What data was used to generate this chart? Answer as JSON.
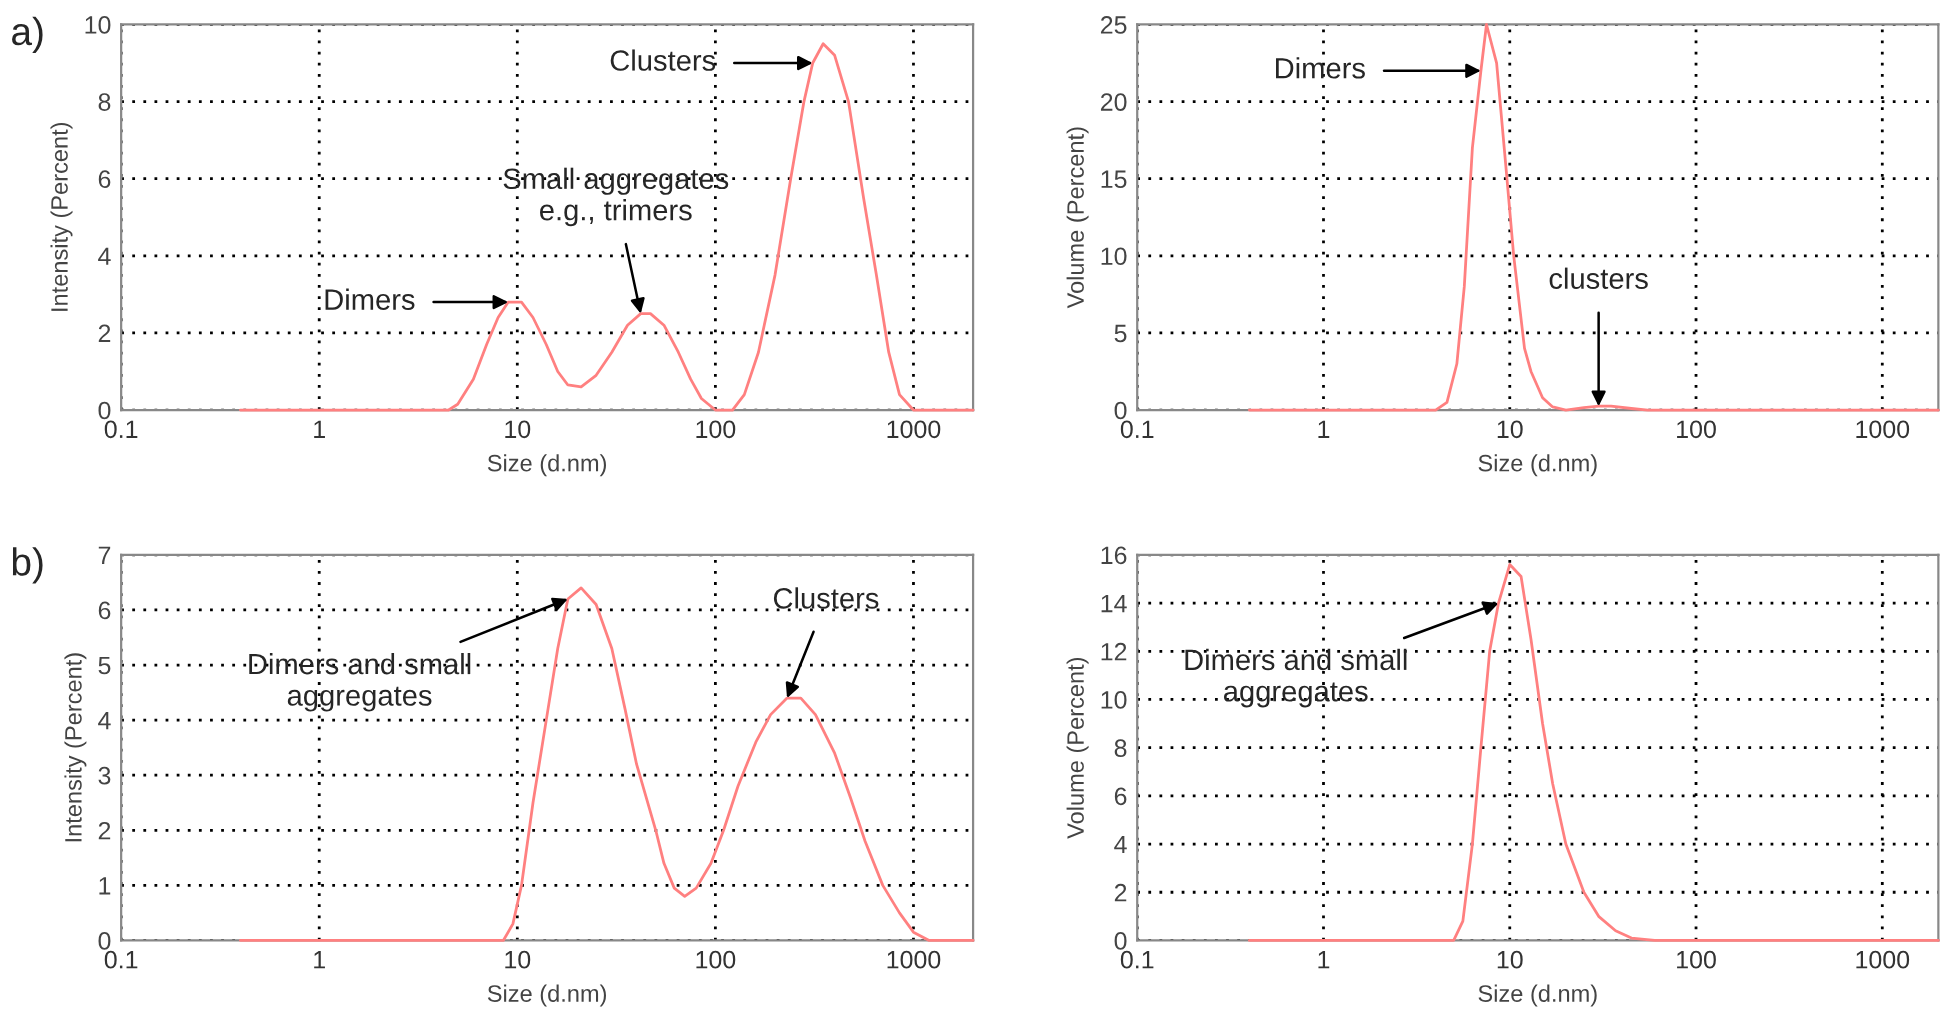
{
  "chart_data": [
    {
      "type": "line",
      "xlabel": "Size (d.nm)",
      "ylabel": "Intensity (Percent)",
      "log": "x",
      "grid": true,
      "marker": "none",
      "line_style": "solid",
      "xlim": [
        0.1,
        2000
      ],
      "xticks": [
        0.1,
        1,
        10,
        100,
        1000
      ],
      "ylim": [
        0,
        10
      ],
      "yticks": [
        0,
        2,
        4,
        6,
        8,
        10
      ],
      "series": [
        {
          "color": "#ff8080",
          "x": [
            0.4,
            4.5,
            5,
            6,
            7,
            8,
            9,
            10.5,
            12,
            14,
            16,
            18,
            21,
            25,
            30,
            36,
            42,
            47,
            55,
            65,
            75,
            85,
            100,
            122,
            140,
            165,
            200,
            240,
            280,
            310,
            350,
            400,
            470,
            560,
            650,
            750,
            850,
            1000,
            2000
          ],
          "values": [
            0,
            0,
            0.15,
            0.8,
            1.7,
            2.4,
            2.8,
            2.8,
            2.4,
            1.7,
            1.0,
            0.65,
            0.6,
            0.9,
            1.5,
            2.2,
            2.5,
            2.5,
            2.2,
            1.5,
            0.8,
            0.3,
            0,
            0,
            0.4,
            1.5,
            3.5,
            6,
            8,
            9,
            9.5,
            9.2,
            8,
            5.5,
            3.5,
            1.5,
            0.4,
            0,
            0
          ]
        }
      ],
      "annotations": [
        "a)",
        {
          "text": "Dimers",
          "x": 9,
          "y": 2.8
        },
        {
          "text": "Small aggregates\ne.g., trimers",
          "x": 42,
          "y": 2.5
        },
        {
          "text": "Clusters",
          "x": 310,
          "y": 9
        }
      ]
    },
    {
      "type": "line",
      "xlabel": "Size (d.nm)",
      "ylabel": "Volume (Percent)",
      "log": "x",
      "grid": true,
      "marker": "none",
      "line_style": "solid",
      "xlim": [
        0.1,
        2000
      ],
      "xticks": [
        0.1,
        1,
        10,
        100,
        1000
      ],
      "ylim": [
        0,
        25
      ],
      "yticks": [
        0,
        5,
        10,
        15,
        20,
        25
      ],
      "series": [
        {
          "color": "#ff8080",
          "x": [
            0.4,
            4,
            4.6,
            5.2,
            5.7,
            6.3,
            7,
            7.5,
            8.5,
            9.5,
            10.5,
            12,
            13,
            15,
            17,
            20,
            25,
            30,
            35,
            45,
            55,
            2000
          ],
          "values": [
            0,
            0,
            0.5,
            3,
            8,
            17,
            22,
            25,
            22.5,
            16,
            10,
            4,
            2.5,
            0.8,
            0.2,
            0,
            0.15,
            0.25,
            0.25,
            0.1,
            0,
            0
          ]
        }
      ],
      "annotations": [
        {
          "text": "Dimers",
          "x": 7,
          "y": 22
        },
        {
          "text": "clusters",
          "x": 30,
          "y": 0.25
        }
      ]
    },
    {
      "type": "line",
      "xlabel": "Size (d.nm)",
      "ylabel": "Intensity (Percent)",
      "log": "x",
      "grid": true,
      "marker": "none",
      "line_style": "solid",
      "xlim": [
        0.1,
        2000
      ],
      "xticks": [
        0.1,
        1,
        10,
        100,
        1000
      ],
      "ylim": [
        0,
        7
      ],
      "yticks": [
        0,
        1,
        2,
        3,
        4,
        5,
        6,
        7
      ],
      "series": [
        {
          "color": "#ff8080",
          "x": [
            0.4,
            8.5,
            9.5,
            10.5,
            12,
            14,
            16,
            18,
            21,
            25,
            30,
            35,
            40,
            50,
            55,
            62,
            70,
            80,
            95,
            110,
            130,
            160,
            190,
            230,
            270,
            320,
            400,
            480,
            570,
            700,
            850,
            1000,
            1200,
            2000
          ],
          "values": [
            0,
            0,
            0.3,
            1.0,
            2.5,
            4,
            5.3,
            6.2,
            6.4,
            6.1,
            5.3,
            4.2,
            3.2,
            2.0,
            1.4,
            0.95,
            0.8,
            0.95,
            1.4,
            2,
            2.8,
            3.6,
            4.1,
            4.4,
            4.4,
            4.1,
            3.4,
            2.6,
            1.8,
            1.0,
            0.5,
            0.15,
            0,
            0
          ]
        }
      ],
      "annotations": [
        "b)",
        {
          "text": "Dimers and small\naggregates",
          "x": 18,
          "y": 6.2
        },
        {
          "text": "Clusters",
          "x": 230,
          "y": 4.4
        }
      ]
    },
    {
      "type": "line",
      "xlabel": "Size (d.nm)",
      "ylabel": "Volume (Percent)",
      "log": "x",
      "grid": true,
      "marker": "none",
      "line_style": "solid",
      "xlim": [
        0.1,
        2000
      ],
      "xticks": [
        0.1,
        1,
        10,
        100,
        1000
      ],
      "ylim": [
        0,
        16
      ],
      "yticks": [
        0,
        2,
        4,
        6,
        8,
        10,
        12,
        14,
        16
      ],
      "series": [
        {
          "color": "#ff8080",
          "x": [
            0.4,
            5,
            5.6,
            6.3,
            7,
            7.8,
            8.7,
            10,
            11.5,
            13,
            15,
            17,
            20,
            25,
            30,
            37,
            45,
            60,
            2000
          ],
          "values": [
            0,
            0,
            0.8,
            4,
            8,
            12,
            14,
            15.6,
            15.1,
            12.5,
            9,
            6.5,
            4,
            2,
            1,
            0.4,
            0.1,
            0,
            0
          ]
        }
      ],
      "annotations": [
        {
          "text": "Dimers and small\naggregates",
          "x": 8.7,
          "y": 14
        }
      ]
    }
  ]
}
